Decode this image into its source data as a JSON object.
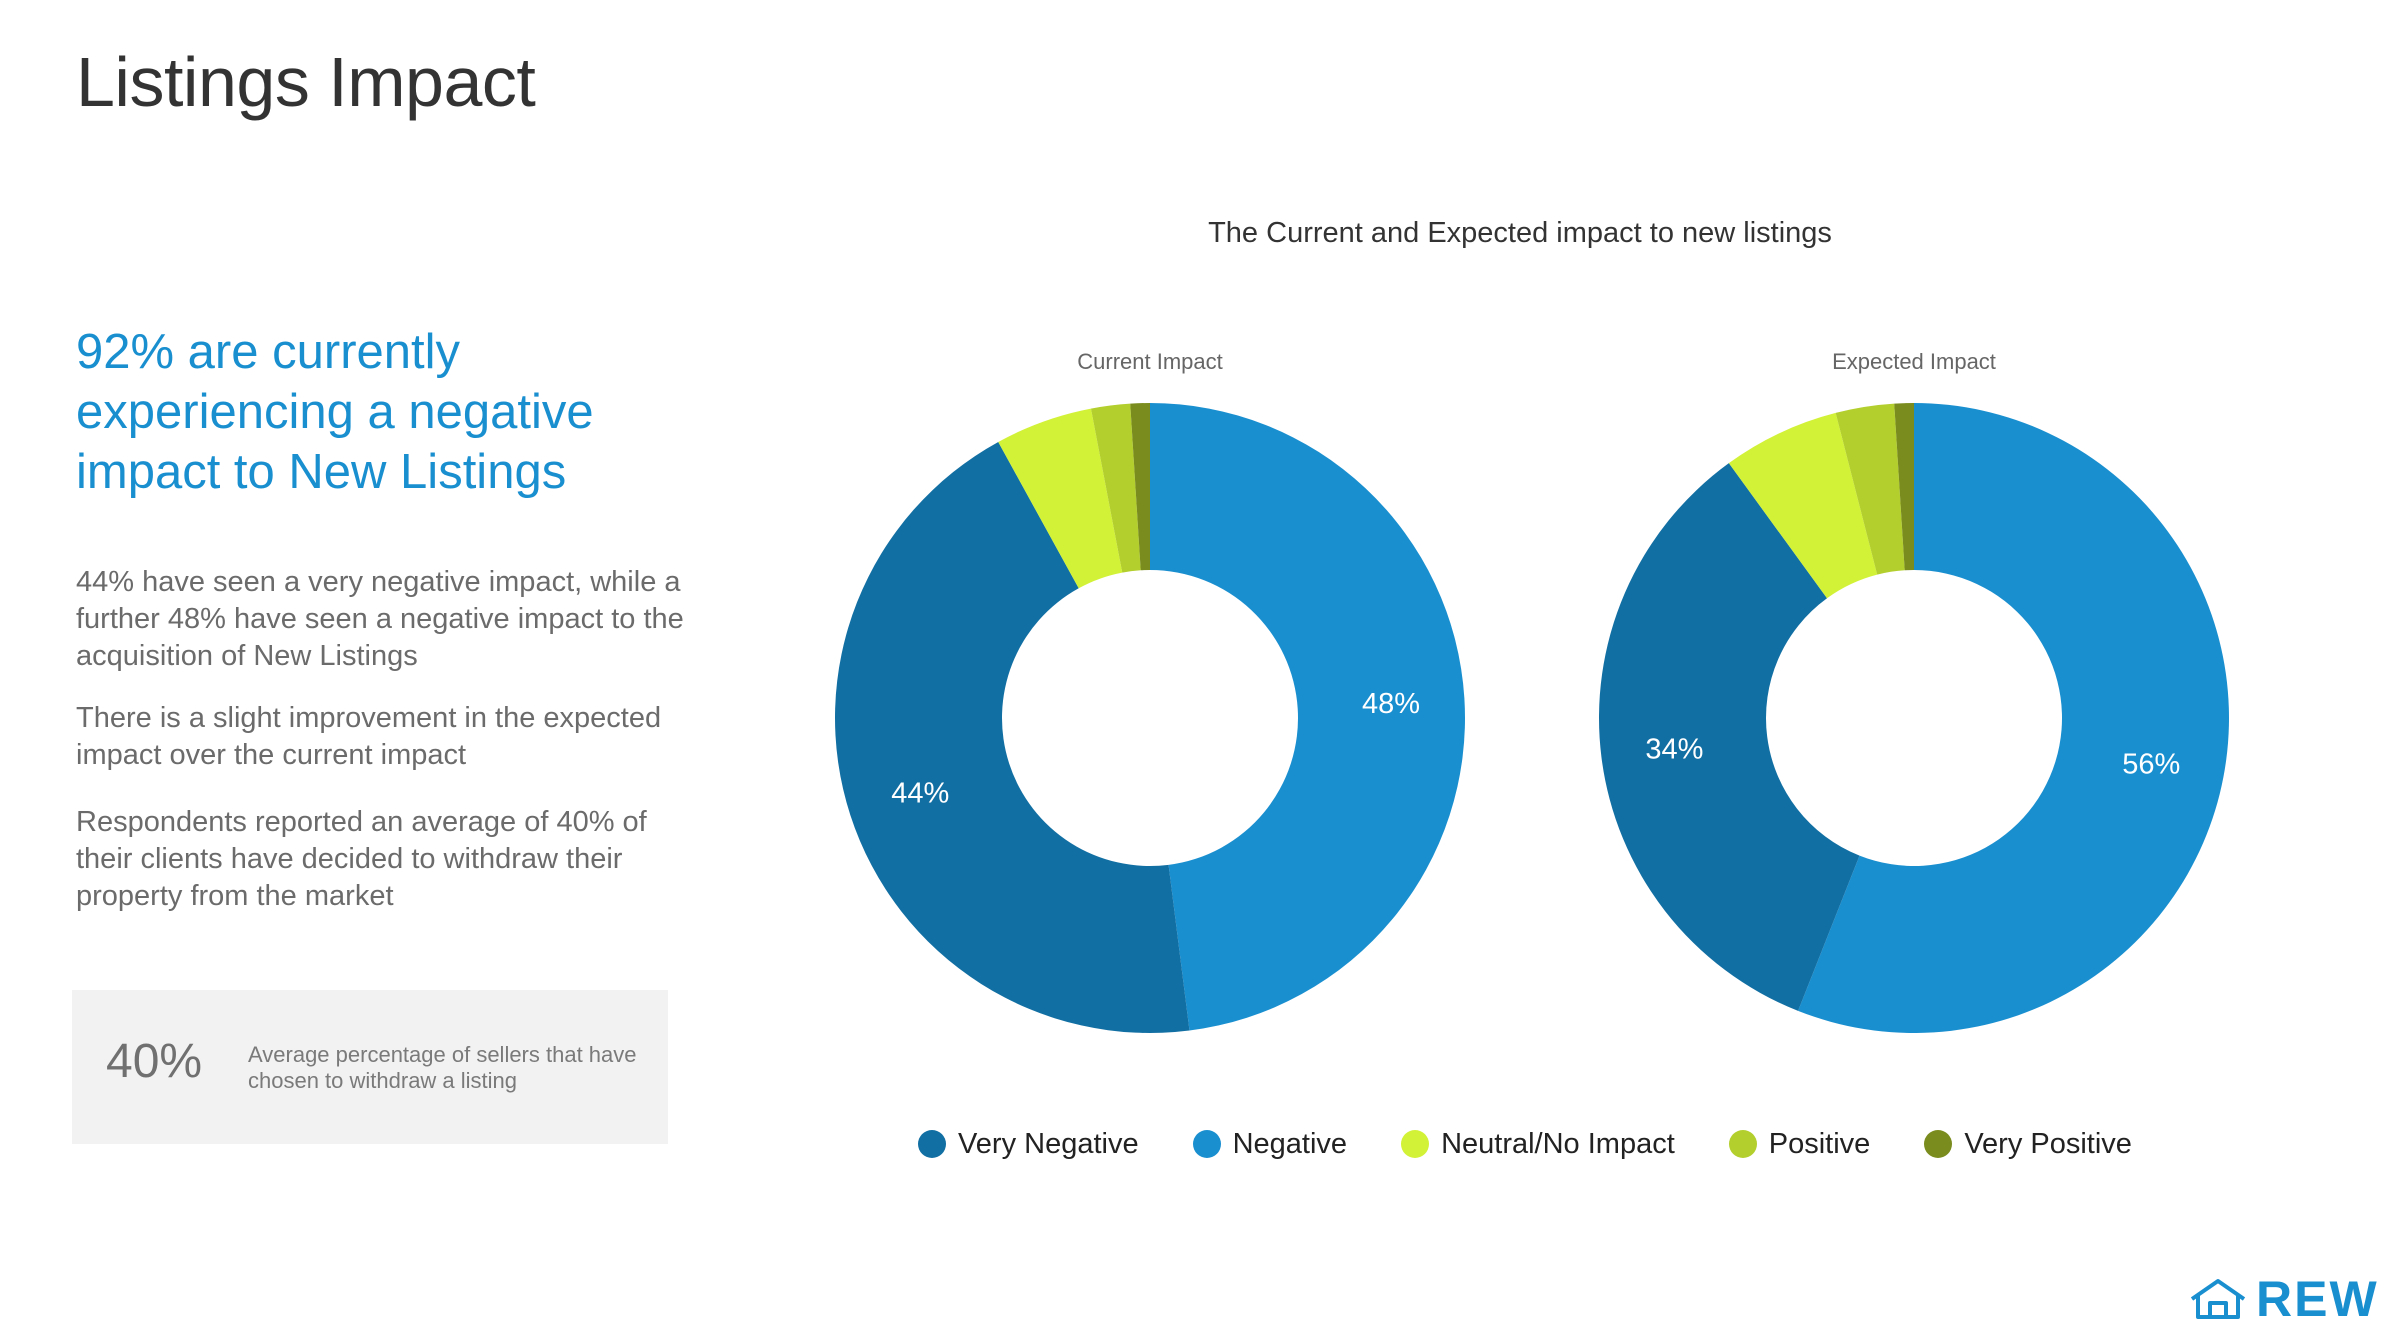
{
  "slide": {
    "title": "Listings Impact",
    "headline": "92% are currently experiencing a negative impact to New Listings",
    "paragraphs": [
      "44% have seen a very negative impact, while a further 48% have seen a negative impact to the acquisition of New Listings",
      "There is a slight improvement in the expected impact over the current impact",
      "Respondents reported an average of 40% of their clients have decided to withdraw their property from the market"
    ],
    "stat": {
      "value": "40%",
      "description": "Average percentage of sellers that have chosen to withdraw a listing"
    },
    "logo_text": "REW",
    "logo_icon": "house-icon"
  },
  "chart_data": {
    "type": "pie",
    "title": "The Current and Expected impact to new listings",
    "legend_position": "bottom",
    "categories": [
      "Very Negative",
      "Negative",
      "Neutral/No Impact",
      "Positive",
      "Very Positive"
    ],
    "colors": [
      "#126fa3",
      "#1a8fd0",
      "#d2f237",
      "#b3cf2e",
      "#7a8c1e"
    ],
    "charts": [
      {
        "name": "Current Impact",
        "values": [
          44,
          48,
          5,
          2,
          1
        ],
        "labels": [
          "44%",
          "48%",
          "",
          "",
          ""
        ]
      },
      {
        "name": "Expected Impact",
        "values": [
          34,
          56,
          6,
          3,
          1
        ],
        "labels": [
          "34%",
          "56%",
          "",
          "",
          ""
        ]
      }
    ]
  }
}
